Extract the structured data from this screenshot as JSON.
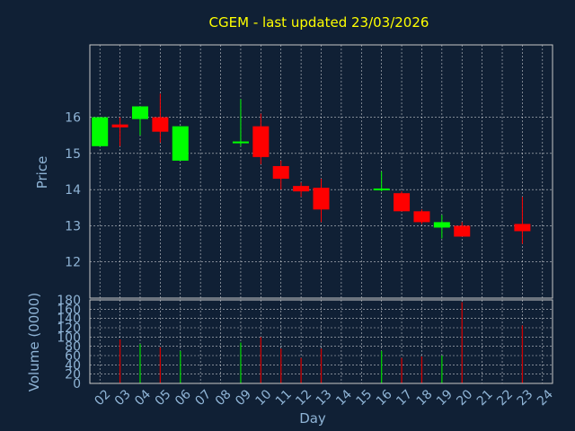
{
  "title": "CGEM - last updated 23/03/2026",
  "colors": {
    "background": "#102035",
    "title": "#ffff00",
    "axis_text": "#8fb4d6",
    "up": "#00ff00",
    "down": "#ff0000",
    "volume_up": "#00cc00",
    "volume_down": "#cc0000"
  },
  "chart_data": [
    {
      "type": "candlestick",
      "ylabel": "Price",
      "ylim": [
        11,
        18
      ],
      "yticks": [
        12,
        13,
        14,
        15,
        16
      ],
      "grid": true,
      "candles": [
        {
          "day": "02",
          "open": 15.2,
          "close": 16.0,
          "high": 16.0,
          "low": 15.2
        },
        {
          "day": "03",
          "open": 15.8,
          "close": 15.72,
          "high": 16.0,
          "low": 15.2
        },
        {
          "day": "04",
          "open": 15.95,
          "close": 16.3,
          "high": 16.3,
          "low": 15.5
        },
        {
          "day": "05",
          "open": 16.0,
          "close": 15.6,
          "high": 16.65,
          "low": 15.3
        },
        {
          "day": "06",
          "open": 14.8,
          "close": 15.75,
          "high": 15.75,
          "low": 14.8
        },
        {
          "day": "09",
          "open": 15.28,
          "close": 15.33,
          "high": 16.5,
          "low": 15.2
        },
        {
          "day": "10",
          "open": 15.75,
          "close": 14.9,
          "high": 16.1,
          "low": 14.7
        },
        {
          "day": "11",
          "open": 14.65,
          "close": 14.3,
          "high": 14.8,
          "low": 14.0
        },
        {
          "day": "12",
          "open": 14.1,
          "close": 13.95,
          "high": 14.2,
          "low": 13.8
        },
        {
          "day": "13",
          "open": 14.05,
          "close": 13.45,
          "high": 14.3,
          "low": 13.1
        },
        {
          "day": "16",
          "open": 14.0,
          "close": 14.03,
          "high": 14.5,
          "low": 13.95
        },
        {
          "day": "17",
          "open": 13.9,
          "close": 13.4,
          "high": 13.95,
          "low": 13.4
        },
        {
          "day": "18",
          "open": 13.4,
          "close": 13.1,
          "high": 13.45,
          "low": 13.05
        },
        {
          "day": "19",
          "open": 12.95,
          "close": 13.1,
          "high": 13.3,
          "low": 12.65
        },
        {
          "day": "20",
          "open": 13.0,
          "close": 12.7,
          "high": 13.1,
          "low": 12.7
        },
        {
          "day": "23",
          "open": 13.05,
          "close": 12.85,
          "high": 13.8,
          "low": 12.5
        }
      ]
    },
    {
      "type": "bar",
      "ylabel": "Volume (0000)",
      "xlabel": "Day",
      "ylim": [
        0,
        180
      ],
      "yticks": [
        0,
        20,
        40,
        60,
        80,
        100,
        120,
        140,
        160,
        180
      ],
      "grid": true,
      "categories": [
        "02",
        "03",
        "04",
        "05",
        "06",
        "07",
        "08",
        "09",
        "10",
        "11",
        "12",
        "13",
        "14",
        "15",
        "16",
        "17",
        "18",
        "19",
        "20",
        "21",
        "22",
        "23",
        "24"
      ],
      "bars": [
        {
          "day": "03",
          "value": 95,
          "dir": "down"
        },
        {
          "day": "04",
          "value": 85,
          "dir": "up"
        },
        {
          "day": "05",
          "value": 78,
          "dir": "down"
        },
        {
          "day": "06",
          "value": 70,
          "dir": "up"
        },
        {
          "day": "09",
          "value": 88,
          "dir": "up"
        },
        {
          "day": "10",
          "value": 100,
          "dir": "down"
        },
        {
          "day": "11",
          "value": 75,
          "dir": "down"
        },
        {
          "day": "12",
          "value": 55,
          "dir": "down"
        },
        {
          "day": "13",
          "value": 75,
          "dir": "down"
        },
        {
          "day": "16",
          "value": 70,
          "dir": "up"
        },
        {
          "day": "17",
          "value": 55,
          "dir": "down"
        },
        {
          "day": "18",
          "value": 58,
          "dir": "down"
        },
        {
          "day": "19",
          "value": 60,
          "dir": "up"
        },
        {
          "day": "20",
          "value": 175,
          "dir": "down"
        },
        {
          "day": "23",
          "value": 125,
          "dir": "down"
        }
      ]
    }
  ]
}
